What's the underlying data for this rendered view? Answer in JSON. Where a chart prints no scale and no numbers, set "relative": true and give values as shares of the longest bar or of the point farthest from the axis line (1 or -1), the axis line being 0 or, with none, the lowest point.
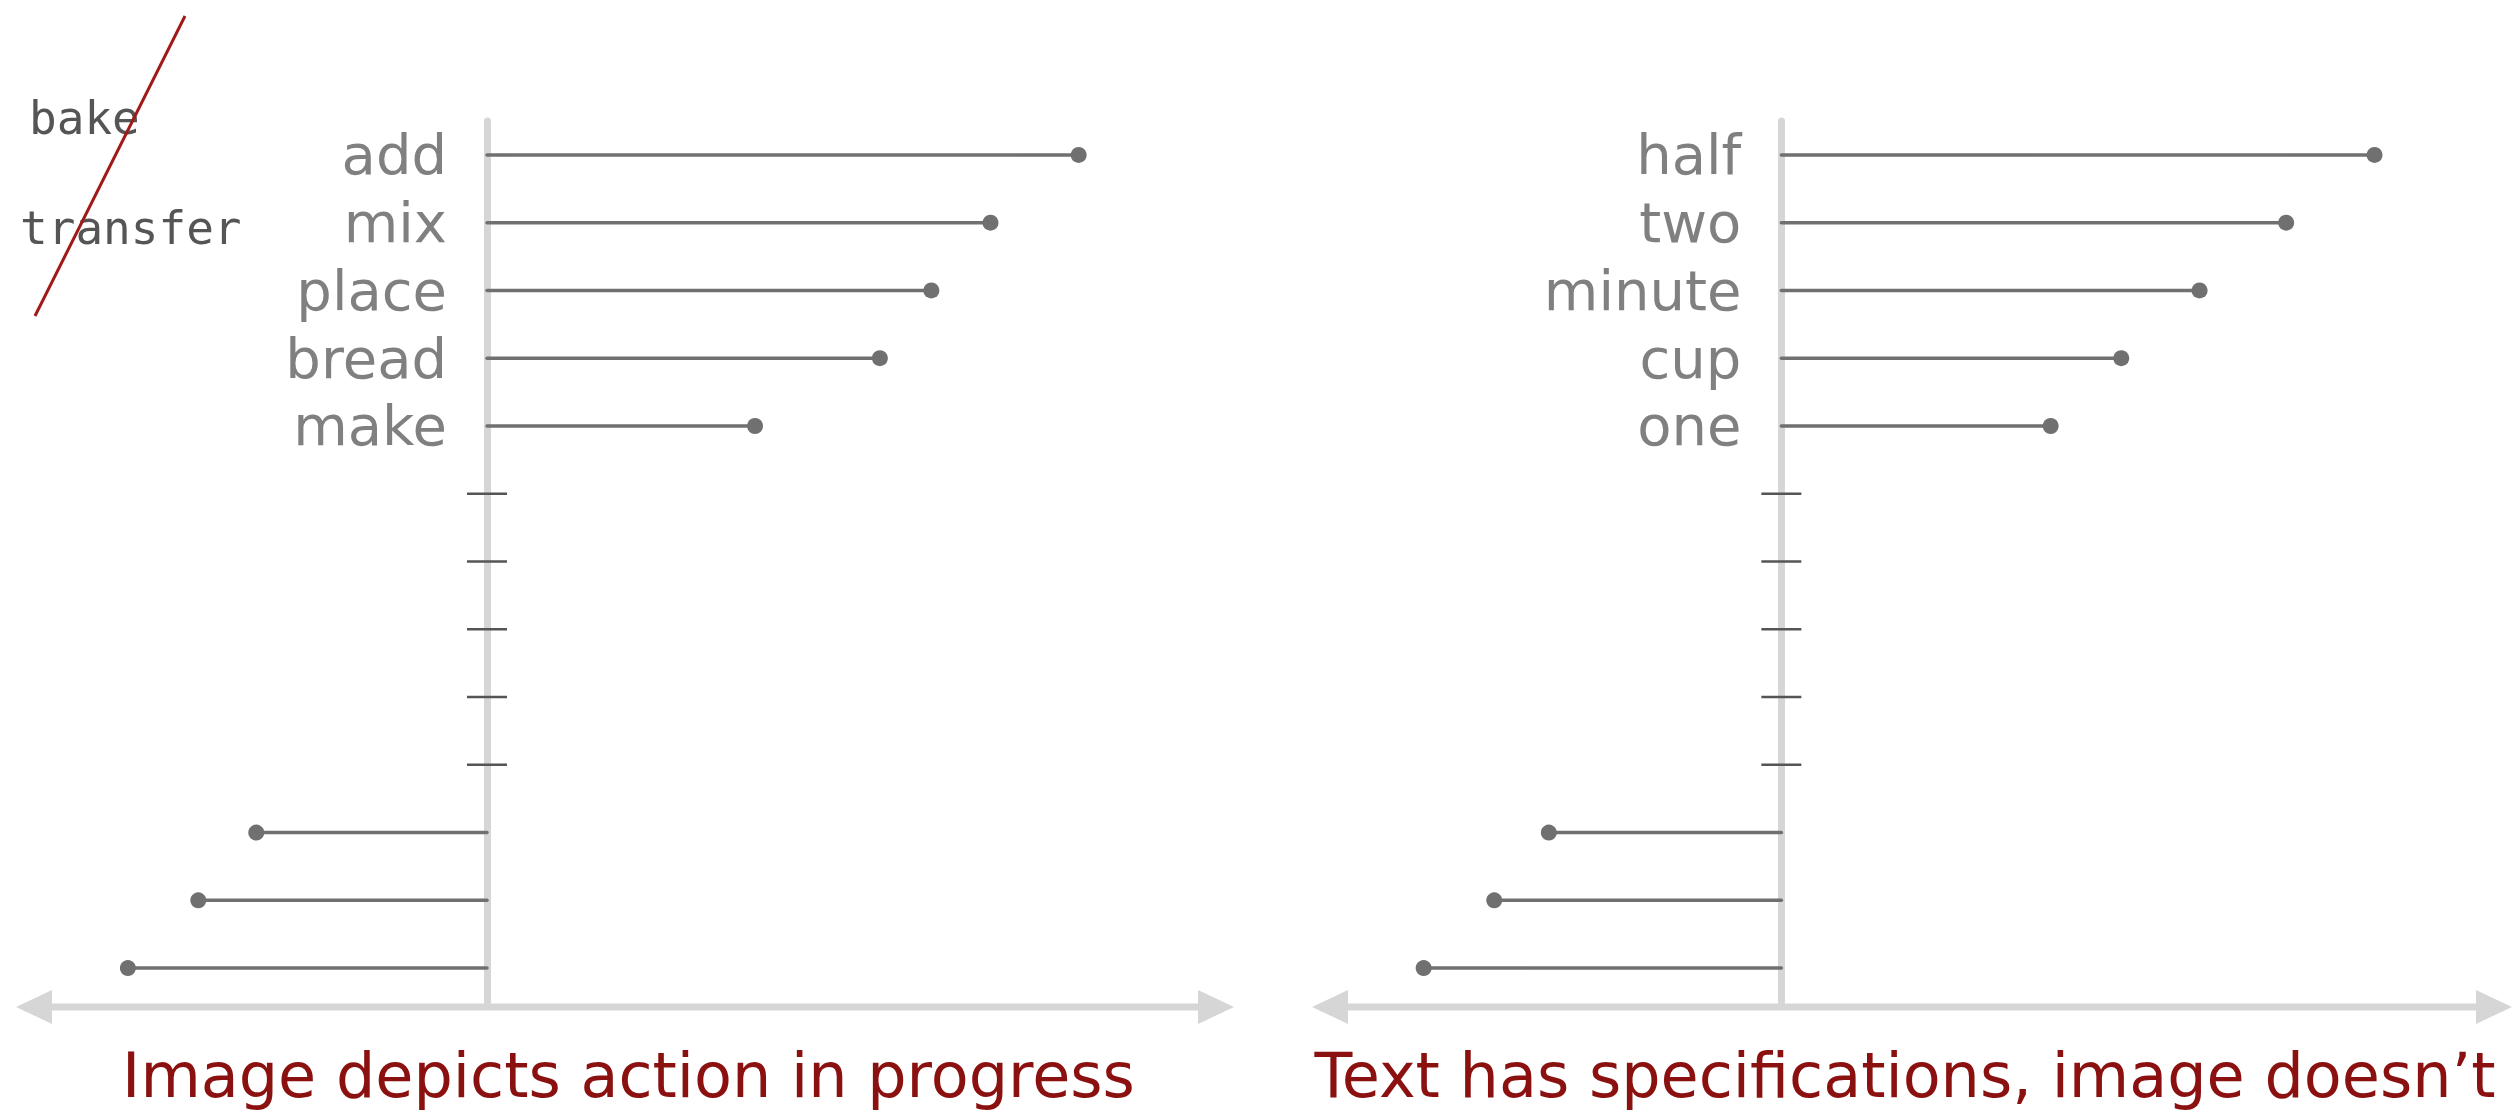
{
  "chart_data": [
    {
      "type": "lollipop",
      "orientation": "horizontal",
      "relative": true,
      "categories": [
        "add",
        "mix",
        "place",
        "bread",
        "make",
        null,
        null,
        null,
        null,
        null,
        null,
        null,
        null
      ],
      "values": [
        1,
        0.851,
        0.751,
        0.664,
        0.453,
        null,
        null,
        null,
        null,
        null,
        -0.39,
        -0.488,
        -0.607
      ],
      "color": "#707070",
      "marker": "circle",
      "xlabel": "Image depicts action in progress",
      "annotations": [
        "bake",
        "transfer"
      ]
    },
    {
      "type": "lollipop",
      "orientation": "horizontal",
      "relative": true,
      "categories": [
        "half",
        "two",
        "minute",
        "cup",
        "one",
        null,
        null,
        null,
        null,
        null,
        null,
        null,
        null
      ],
      "values": [
        1,
        0.851,
        0.705,
        0.573,
        0.454,
        null,
        null,
        null,
        null,
        null,
        -0.392,
        -0.484,
        -0.603
      ],
      "color": "#707070",
      "marker": "circle",
      "xlabel": "Text has specifications, image doesn’t"
    }
  ]
}
